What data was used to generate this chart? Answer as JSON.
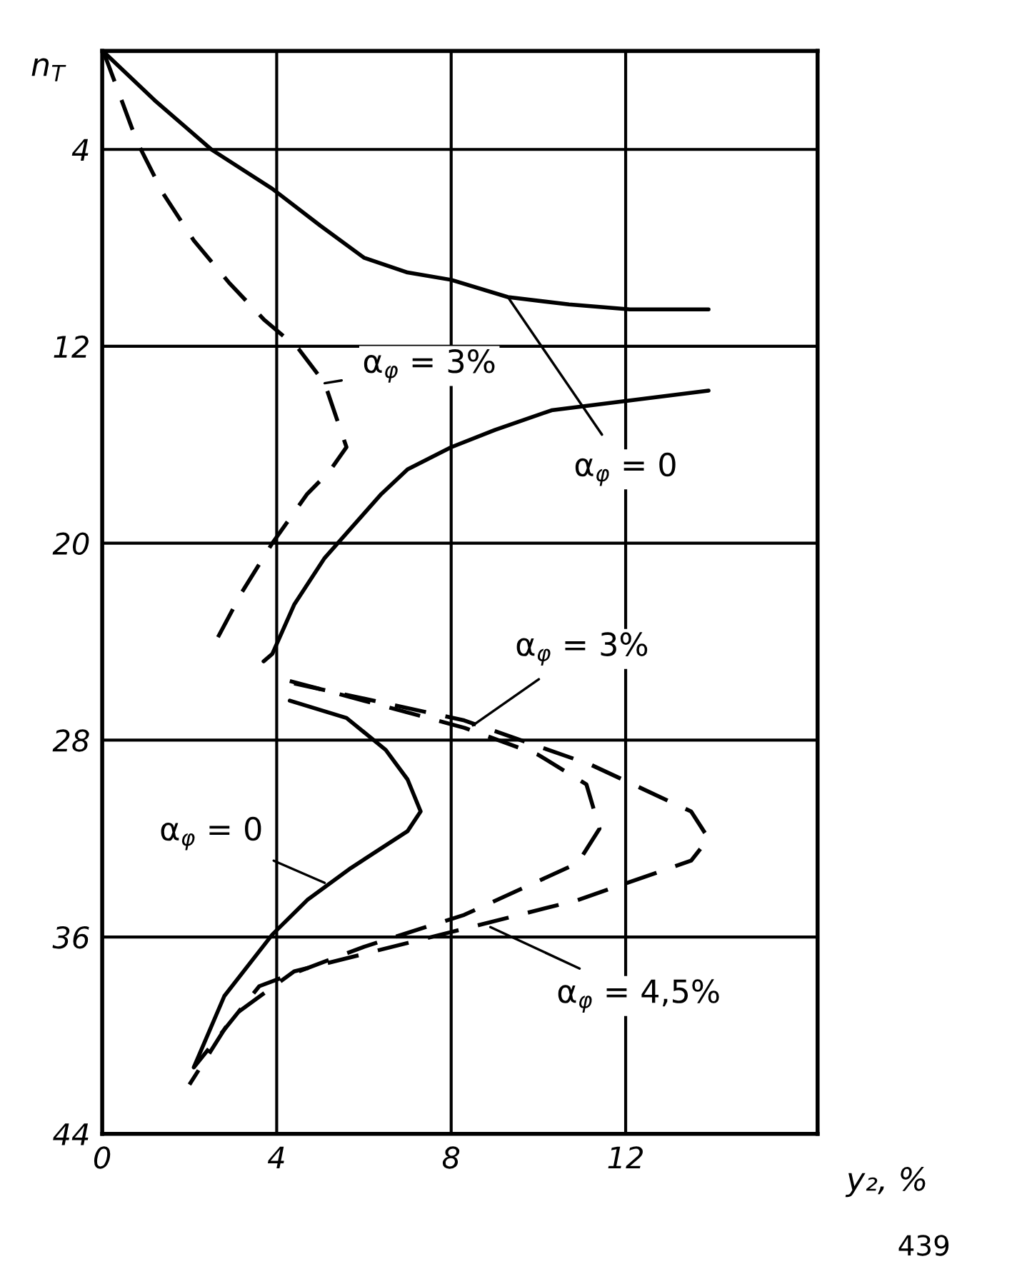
{
  "chart_data": {
    "type": "line",
    "xlabel": "y₂, %",
    "ylabel": "n$_{T}$",
    "xlim": [
      0,
      16.4
    ],
    "ylim": [
      44,
      0
    ],
    "xticks": [
      0,
      4,
      8,
      12
    ],
    "yticks": [
      4,
      12,
      20,
      28,
      36,
      44
    ],
    "grid": true,
    "legend": false,
    "series": [
      {
        "color": "#000000",
        "line_style": "solid",
        "x": [
          0.03,
          1.2,
          2.5,
          3.9,
          5.0,
          6.0,
          7.0,
          8.0,
          9.3,
          10.7,
          12.1,
          13.9
        ],
        "values": [
          0.03,
          2.0,
          4.0,
          5.6,
          7.1,
          8.4,
          9.0,
          9.3,
          10.0,
          10.3,
          10.5,
          10.5
        ]
      },
      {
        "color": "#000000",
        "line_style": "dashed",
        "x": [
          0.03,
          0.8,
          1.4,
          2.1,
          2.9,
          3.7,
          4.5,
          5.1,
          5.6,
          5.2,
          4.7,
          3.9,
          3.2,
          2.6
        ],
        "values": [
          0.03,
          3.7,
          5.8,
          7.7,
          9.4,
          10.9,
          12.1,
          13.5,
          16.1,
          17.1,
          18.0,
          20.0,
          22.0,
          24.0
        ]
      },
      {
        "color": "#000000",
        "line_style": "solid",
        "x": [
          13.9,
          12.1,
          10.3,
          9.0,
          8.0,
          7.0,
          6.4,
          5.1,
          4.4,
          3.9,
          3.7
        ],
        "values": [
          13.8,
          14.2,
          14.6,
          15.4,
          16.1,
          17.0,
          18.0,
          20.6,
          22.5,
          24.5,
          24.8
        ]
      },
      {
        "color": "#000000",
        "line_style": "solid",
        "x": [
          4.3,
          5.6,
          6.5,
          7.0,
          7.3,
          7.0,
          5.7,
          4.7,
          3.9,
          2.8,
          2.1
        ],
        "values": [
          26.4,
          27.1,
          28.4,
          29.6,
          30.9,
          31.7,
          33.2,
          34.5,
          35.9,
          38.4,
          41.3
        ]
      },
      {
        "color": "#000000",
        "line_style": "dashed",
        "x": [
          4.3,
          6.0,
          8.3,
          10.0,
          11.1,
          11.4,
          10.9,
          8.3,
          6.0,
          3.6,
          2.1
        ],
        "values": [
          25.6,
          26.4,
          27.5,
          28.6,
          29.8,
          31.6,
          33.0,
          35.1,
          36.4,
          38.0,
          41.3
        ]
      },
      {
        "color": "#000000",
        "line_style": "dashed",
        "x": [
          4.4,
          8.3,
          11.2,
          13.5,
          13.9,
          13.5,
          10.9,
          8.0,
          4.4,
          3.0,
          2.0
        ],
        "values": [
          25.7,
          27.2,
          29.0,
          30.9,
          32.0,
          32.9,
          34.5,
          35.8,
          37.4,
          39.2,
          42.0
        ]
      }
    ],
    "annotations": [
      {
        "text": "α$_{φ}$ = 3%",
        "x": 5.1,
        "y": 13.5
      },
      {
        "text": "α$_{φ}$ = 0",
        "x": 9.3,
        "y": 10.0
      },
      {
        "text": "α$_{φ}$ = 3%",
        "x": 8.5,
        "y": 27.4
      },
      {
        "text": "α$_{φ}$ = 0",
        "x": 5.1,
        "y": 33.8
      },
      {
        "text": "α$_{φ}$ = 4,5%",
        "x": 8.9,
        "y": 35.6
      },
      "439"
    ]
  }
}
